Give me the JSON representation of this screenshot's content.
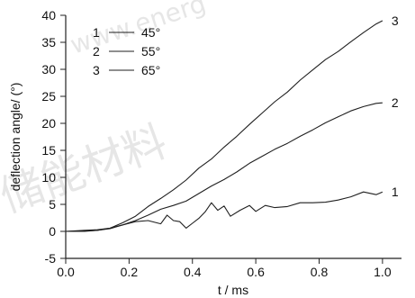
{
  "chart_data": {
    "type": "line",
    "xlabel": "t / ms",
    "ylabel": "deflection angle/ (°)",
    "xlim": [
      0.0,
      1.06
    ],
    "ylim": [
      -5,
      40
    ],
    "x_ticks": [
      "0.0",
      "0.2",
      "0.4",
      "0.6",
      "0.8",
      "1.0"
    ],
    "y_ticks": [
      "-5",
      "0",
      "5",
      "10",
      "15",
      "20",
      "25",
      "30",
      "35",
      "40"
    ],
    "legend": {
      "placement": "top-left",
      "entries": [
        {
          "id": "1",
          "label": "45°"
        },
        {
          "id": "2",
          "label": "55°"
        },
        {
          "id": "3",
          "label": "65°"
        }
      ]
    },
    "series": [
      {
        "name": "45°",
        "curve_label": "1",
        "x": [
          0.0,
          0.06,
          0.1,
          0.14,
          0.18,
          0.22,
          0.26,
          0.3,
          0.32,
          0.34,
          0.36,
          0.38,
          0.4,
          0.42,
          0.44,
          0.46,
          0.48,
          0.5,
          0.52,
          0.55,
          0.58,
          0.6,
          0.63,
          0.66,
          0.7,
          0.74,
          0.78,
          0.82,
          0.86,
          0.9,
          0.94,
          0.98,
          1.0
        ],
        "y": [
          0.0,
          0.0,
          0.2,
          0.6,
          1.2,
          1.8,
          2.0,
          1.4,
          3.0,
          2.0,
          1.8,
          0.6,
          1.5,
          2.4,
          3.6,
          5.3,
          3.9,
          4.7,
          2.8,
          3.9,
          4.8,
          3.7,
          4.8,
          4.4,
          4.6,
          5.3,
          5.3,
          5.4,
          5.8,
          6.4,
          7.3,
          6.8,
          7.3
        ]
      },
      {
        "name": "55°",
        "curve_label": "2",
        "x": [
          0.0,
          0.06,
          0.1,
          0.14,
          0.18,
          0.22,
          0.26,
          0.3,
          0.34,
          0.38,
          0.42,
          0.46,
          0.5,
          0.54,
          0.58,
          0.62,
          0.66,
          0.7,
          0.74,
          0.78,
          0.82,
          0.86,
          0.9,
          0.94,
          0.98,
          1.0
        ],
        "y": [
          0.0,
          0.1,
          0.2,
          0.5,
          1.2,
          2.0,
          3.0,
          4.1,
          4.8,
          5.6,
          7.0,
          8.4,
          9.6,
          11.0,
          12.6,
          13.9,
          15.2,
          16.3,
          17.6,
          18.8,
          20.1,
          21.2,
          22.3,
          23.1,
          23.7,
          23.8
        ]
      },
      {
        "name": "65°",
        "curve_label": "3",
        "x": [
          0.0,
          0.06,
          0.1,
          0.14,
          0.18,
          0.22,
          0.26,
          0.3,
          0.34,
          0.38,
          0.42,
          0.46,
          0.5,
          0.54,
          0.58,
          0.62,
          0.66,
          0.7,
          0.74,
          0.78,
          0.82,
          0.86,
          0.9,
          0.94,
          0.98,
          1.0
        ],
        "y": [
          0.0,
          0.2,
          0.3,
          0.6,
          1.6,
          2.8,
          4.6,
          6.1,
          7.7,
          9.5,
          11.7,
          13.4,
          15.6,
          17.6,
          19.8,
          21.9,
          24.0,
          25.8,
          28.0,
          29.9,
          31.8,
          33.3,
          35.1,
          36.8,
          38.4,
          39.0
        ]
      }
    ]
  },
  "watermark": {
    "latin": "www.energ",
    "chinese": "储能材料"
  }
}
